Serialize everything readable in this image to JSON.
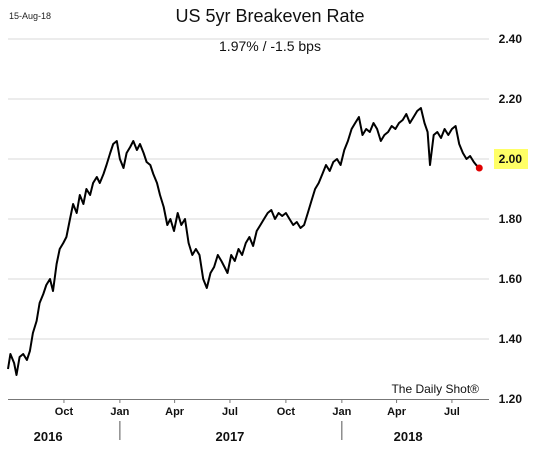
{
  "chart_data": {
    "type": "line",
    "date_label": "15-Aug-18",
    "title": "US 5yr Breakeven Rate",
    "subtitle": "1.97%  /  -1.5 bps",
    "source": "The Daily Shot®",
    "ylim": [
      1.2,
      2.4
    ],
    "yticks": [
      "2.40",
      "2.20",
      "2.00",
      "1.80",
      "1.60",
      "1.40",
      "1.20"
    ],
    "ytick_values": [
      2.4,
      2.2,
      2.0,
      1.8,
      1.6,
      1.4,
      1.2
    ],
    "highlighted_tick": "2.00",
    "xlim": [
      "2016-07-01",
      "2018-08-31"
    ],
    "xticks": [
      {
        "label": "Oct",
        "date": "2016-10-01"
      },
      {
        "label": "Jan",
        "date": "2017-01-01"
      },
      {
        "label": "Apr",
        "date": "2017-04-01"
      },
      {
        "label": "Jul",
        "date": "2017-07-01"
      },
      {
        "label": "Oct",
        "date": "2017-10-01"
      },
      {
        "label": "Jan",
        "date": "2018-01-01"
      },
      {
        "label": "Apr",
        "date": "2018-04-01"
      },
      {
        "label": "Jul",
        "date": "2018-07-01"
      }
    ],
    "years": [
      {
        "label": "2016",
        "date": "2016-09-05"
      },
      {
        "label": "2017",
        "date": "2017-07-01"
      },
      {
        "label": "2018",
        "date": "2018-04-20"
      }
    ],
    "year_dividers": [
      "2017-01-01",
      "2018-01-01"
    ],
    "grid": true,
    "line_color": "#000000",
    "marker_color": "#e00000",
    "highlight_color": "#ffff66",
    "series": [
      {
        "x": [
          "2016-07-01",
          "2016-07-05",
          "2016-07-11",
          "2016-07-15",
          "2016-07-20",
          "2016-07-26",
          "2016-08-01",
          "2016-08-06",
          "2016-08-11",
          "2016-08-17",
          "2016-08-22",
          "2016-08-28",
          "2016-09-02",
          "2016-09-08",
          "2016-09-13",
          "2016-09-19",
          "2016-09-24",
          "2016-09-30",
          "2016-10-05",
          "2016-10-11",
          "2016-10-16",
          "2016-10-22",
          "2016-10-27",
          "2016-11-02",
          "2016-11-07",
          "2016-11-13",
          "2016-11-18",
          "2016-11-24",
          "2016-11-29",
          "2016-12-05",
          "2016-12-10",
          "2016-12-16",
          "2016-12-21",
          "2016-12-27",
          "2017-01-01",
          "2017-01-07",
          "2017-01-12",
          "2017-01-18",
          "2017-01-23",
          "2017-01-29",
          "2017-02-03",
          "2017-02-09",
          "2017-02-14",
          "2017-02-20",
          "2017-02-25",
          "2017-03-03",
          "2017-03-08",
          "2017-03-14",
          "2017-03-20",
          "2017-03-25",
          "2017-03-31",
          "2017-04-06",
          "2017-04-12",
          "2017-04-18",
          "2017-04-24",
          "2017-04-30",
          "2017-05-06",
          "2017-05-12",
          "2017-05-18",
          "2017-05-24",
          "2017-05-30",
          "2017-06-05",
          "2017-06-11",
          "2017-06-17",
          "2017-06-22",
          "2017-06-27",
          "2017-07-03",
          "2017-07-09",
          "2017-07-15",
          "2017-07-21",
          "2017-07-27",
          "2017-08-02",
          "2017-08-08",
          "2017-08-14",
          "2017-08-20",
          "2017-08-26",
          "2017-09-01",
          "2017-09-07",
          "2017-09-13",
          "2017-09-19",
          "2017-09-25",
          "2017-10-01",
          "2017-10-07",
          "2017-10-13",
          "2017-10-19",
          "2017-10-25",
          "2017-10-31",
          "2017-11-06",
          "2017-11-12",
          "2017-11-18",
          "2017-11-24",
          "2017-11-30",
          "2017-12-06",
          "2017-12-12",
          "2017-12-18",
          "2017-12-24",
          "2017-12-30",
          "2018-01-05",
          "2018-01-11",
          "2018-01-17",
          "2018-01-23",
          "2018-01-29",
          "2018-02-04",
          "2018-02-10",
          "2018-02-16",
          "2018-02-22",
          "2018-02-28",
          "2018-03-06",
          "2018-03-12",
          "2018-03-18",
          "2018-03-24",
          "2018-03-30",
          "2018-04-05",
          "2018-04-11",
          "2018-04-17",
          "2018-04-23",
          "2018-04-29",
          "2018-05-05",
          "2018-05-11",
          "2018-05-17",
          "2018-05-22",
          "2018-05-26",
          "2018-06-01",
          "2018-06-07",
          "2018-06-13",
          "2018-06-19",
          "2018-06-25",
          "2018-07-01",
          "2018-07-07",
          "2018-07-13",
          "2018-07-19",
          "2018-07-25",
          "2018-07-31",
          "2018-08-06",
          "2018-08-10",
          "2018-08-15"
        ],
        "y": [
          1.3,
          1.35,
          1.32,
          1.28,
          1.34,
          1.35,
          1.33,
          1.36,
          1.42,
          1.46,
          1.52,
          1.55,
          1.58,
          1.6,
          1.56,
          1.65,
          1.7,
          1.72,
          1.74,
          1.8,
          1.85,
          1.82,
          1.88,
          1.85,
          1.9,
          1.88,
          1.92,
          1.94,
          1.92,
          1.95,
          1.98,
          2.02,
          2.05,
          2.06,
          2.0,
          1.97,
          2.02,
          2.04,
          2.06,
          2.03,
          2.05,
          2.02,
          1.99,
          1.98,
          1.95,
          1.92,
          1.88,
          1.84,
          1.78,
          1.8,
          1.76,
          1.82,
          1.78,
          1.8,
          1.72,
          1.68,
          1.7,
          1.68,
          1.6,
          1.57,
          1.62,
          1.64,
          1.68,
          1.66,
          1.64,
          1.62,
          1.68,
          1.66,
          1.7,
          1.68,
          1.72,
          1.74,
          1.71,
          1.76,
          1.78,
          1.8,
          1.82,
          1.83,
          1.8,
          1.82,
          1.81,
          1.82,
          1.8,
          1.78,
          1.79,
          1.77,
          1.78,
          1.82,
          1.86,
          1.9,
          1.92,
          1.95,
          1.98,
          1.96,
          1.99,
          2.0,
          1.98,
          2.03,
          2.06,
          2.1,
          2.12,
          2.14,
          2.08,
          2.1,
          2.09,
          2.12,
          2.1,
          2.06,
          2.08,
          2.09,
          2.11,
          2.1,
          2.12,
          2.13,
          2.15,
          2.12,
          2.14,
          2.16,
          2.17,
          2.12,
          2.09,
          1.98,
          2.08,
          2.09,
          2.07,
          2.1,
          2.08,
          2.1,
          2.11,
          2.05,
          2.02,
          2.0,
          2.01,
          1.99,
          1.98,
          1.97
        ]
      }
    ]
  }
}
